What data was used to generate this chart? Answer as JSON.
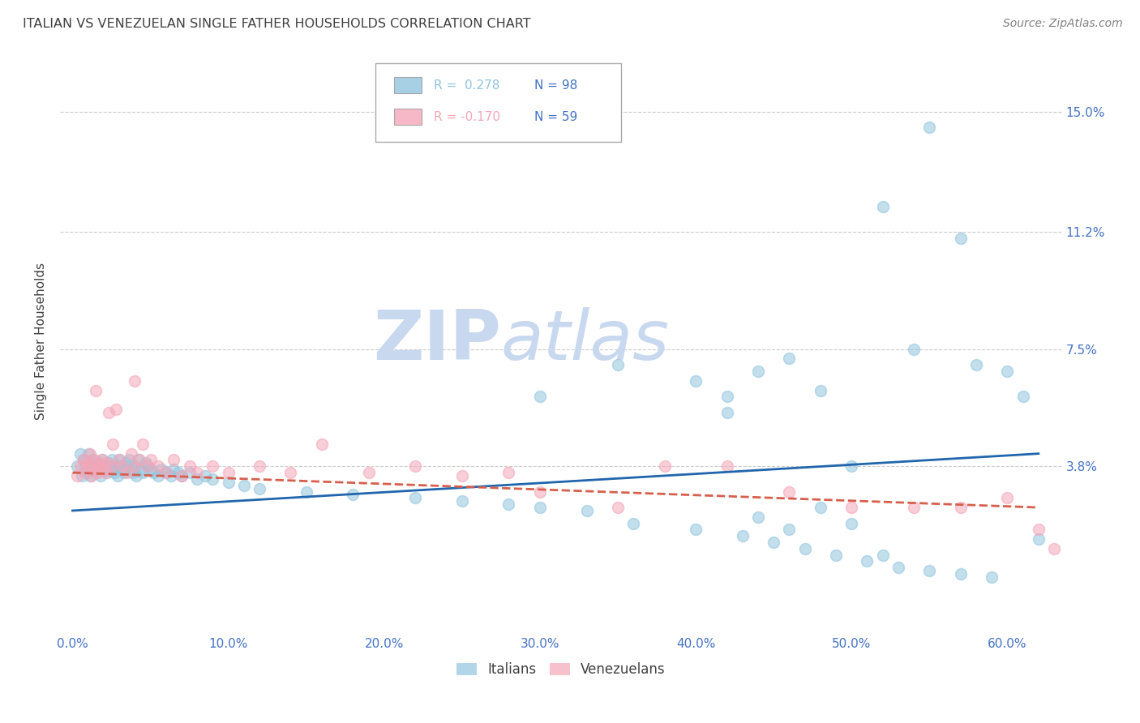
{
  "title": "ITALIAN VS VENEZUELAN SINGLE FATHER HOUSEHOLDS CORRELATION CHART",
  "source": "Source: ZipAtlas.com",
  "ylabel": "Single Father Households",
  "legend_italians": "Italians",
  "legend_venezuelans": "Venezuelans",
  "R_italians": 0.278,
  "N_italians": 98,
  "R_venezuelans": -0.17,
  "N_venezuelans": 59,
  "blue_color": "#92c5de",
  "pink_color": "#f4a6b8",
  "blue_line_color": "#2166ac",
  "pink_line_color": "#d6604d",
  "title_color": "#404040",
  "axis_label_color": "#4472c4",
  "source_color": "#808080",
  "watermark_zip_color": "#c8d8ee",
  "watermark_atlas_color": "#c8d8ee",
  "background_color": "#ffffff",
  "grid_color": "#cccccc",
  "legend_border_color": "#aaaaaa",
  "x_tick_vals": [
    0.0,
    0.1,
    0.2,
    0.3,
    0.4,
    0.5,
    0.6
  ],
  "x_tick_labels": [
    "0.0%",
    "10.0%",
    "20.0%",
    "30.0%",
    "40.0%",
    "50.0%",
    "60.0%"
  ],
  "y_tick_vals": [
    0.038,
    0.075,
    0.112,
    0.15
  ],
  "y_tick_labels": [
    "3.8%",
    "7.5%",
    "11.2%",
    "15.0%"
  ],
  "xlim": [
    -0.008,
    0.635
  ],
  "ylim": [
    -0.015,
    0.17
  ],
  "blue_line_x0": 0.0,
  "blue_line_x1": 0.62,
  "blue_line_y0": 0.024,
  "blue_line_y1": 0.042,
  "pink_line_x0": 0.0,
  "pink_line_x1": 0.62,
  "pink_line_y0": 0.036,
  "pink_line_y1": 0.025,
  "blue_x": [
    0.003,
    0.005,
    0.006,
    0.007,
    0.008,
    0.009,
    0.01,
    0.011,
    0.012,
    0.013,
    0.014,
    0.015,
    0.016,
    0.017,
    0.018,
    0.019,
    0.02,
    0.021,
    0.022,
    0.023,
    0.024,
    0.025,
    0.026,
    0.027,
    0.028,
    0.029,
    0.03,
    0.031,
    0.032,
    0.033,
    0.034,
    0.035,
    0.036,
    0.038,
    0.039,
    0.04,
    0.041,
    0.042,
    0.044,
    0.045,
    0.047,
    0.048,
    0.05,
    0.052,
    0.055,
    0.057,
    0.06,
    0.063,
    0.065,
    0.068,
    0.07,
    0.075,
    0.08,
    0.085,
    0.09,
    0.1,
    0.11,
    0.12,
    0.15,
    0.18,
    0.22,
    0.25,
    0.28,
    0.3,
    0.33,
    0.36,
    0.4,
    0.43,
    0.45,
    0.47,
    0.49,
    0.51,
    0.53,
    0.55,
    0.57,
    0.59,
    0.3,
    0.35,
    0.4,
    0.42,
    0.44,
    0.46,
    0.48,
    0.5,
    0.52,
    0.54,
    0.42,
    0.44,
    0.46,
    0.48,
    0.5,
    0.52,
    0.55,
    0.57,
    0.58,
    0.6,
    0.61,
    0.62
  ],
  "blue_y": [
    0.038,
    0.042,
    0.035,
    0.04,
    0.038,
    0.036,
    0.042,
    0.035,
    0.038,
    0.04,
    0.037,
    0.036,
    0.039,
    0.038,
    0.035,
    0.04,
    0.038,
    0.037,
    0.036,
    0.039,
    0.038,
    0.04,
    0.037,
    0.036,
    0.038,
    0.035,
    0.04,
    0.038,
    0.037,
    0.036,
    0.039,
    0.038,
    0.04,
    0.037,
    0.036,
    0.038,
    0.035,
    0.04,
    0.037,
    0.036,
    0.039,
    0.038,
    0.037,
    0.036,
    0.035,
    0.037,
    0.036,
    0.035,
    0.037,
    0.036,
    0.035,
    0.036,
    0.034,
    0.035,
    0.034,
    0.033,
    0.032,
    0.031,
    0.03,
    0.029,
    0.028,
    0.027,
    0.026,
    0.025,
    0.024,
    0.02,
    0.018,
    0.016,
    0.014,
    0.012,
    0.01,
    0.008,
    0.006,
    0.005,
    0.004,
    0.003,
    0.06,
    0.07,
    0.065,
    0.055,
    0.068,
    0.072,
    0.062,
    0.038,
    0.12,
    0.075,
    0.06,
    0.022,
    0.018,
    0.025,
    0.02,
    0.01,
    0.145,
    0.11,
    0.07,
    0.068,
    0.06,
    0.015
  ],
  "pink_x": [
    0.003,
    0.005,
    0.007,
    0.008,
    0.009,
    0.01,
    0.011,
    0.012,
    0.013,
    0.014,
    0.015,
    0.016,
    0.017,
    0.018,
    0.019,
    0.02,
    0.021,
    0.022,
    0.023,
    0.025,
    0.026,
    0.028,
    0.03,
    0.032,
    0.035,
    0.038,
    0.04,
    0.043,
    0.045,
    0.048,
    0.05,
    0.055,
    0.06,
    0.065,
    0.07,
    0.075,
    0.08,
    0.09,
    0.1,
    0.12,
    0.14,
    0.16,
    0.19,
    0.22,
    0.25,
    0.28,
    0.3,
    0.35,
    0.38,
    0.42,
    0.46,
    0.5,
    0.54,
    0.57,
    0.6,
    0.62,
    0.63,
    0.015,
    0.04
  ],
  "pink_y": [
    0.035,
    0.038,
    0.04,
    0.036,
    0.039,
    0.038,
    0.042,
    0.035,
    0.038,
    0.04,
    0.037,
    0.036,
    0.039,
    0.038,
    0.04,
    0.037,
    0.036,
    0.039,
    0.055,
    0.038,
    0.045,
    0.056,
    0.04,
    0.038,
    0.036,
    0.042,
    0.038,
    0.04,
    0.045,
    0.038,
    0.04,
    0.038,
    0.036,
    0.04,
    0.035,
    0.038,
    0.036,
    0.038,
    0.036,
    0.038,
    0.036,
    0.045,
    0.036,
    0.038,
    0.035,
    0.036,
    0.03,
    0.025,
    0.038,
    0.038,
    0.03,
    0.025,
    0.025,
    0.025,
    0.028,
    0.018,
    0.012,
    0.062,
    0.065
  ]
}
